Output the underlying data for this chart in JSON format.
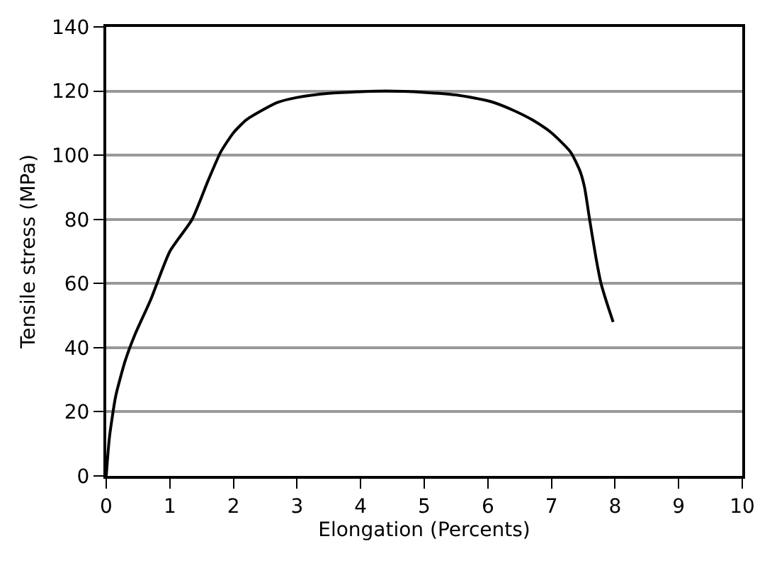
{
  "chart_data": {
    "type": "line",
    "xlabel": "Elongation (Percents)",
    "ylabel": "Tensile stress (MPa)",
    "series": [
      {
        "color": "#000000",
        "x": [
          0,
          0.05,
          0.15,
          0.3,
          0.45,
          0.7,
          1.0,
          1.35,
          1.6,
          1.8,
          2.0,
          2.2,
          2.45,
          2.7,
          3.0,
          3.5,
          4.0,
          4.4,
          5.0,
          5.5,
          6.05,
          6.4,
          6.7,
          7.0,
          7.3,
          7.45,
          7.52,
          7.6,
          7.7,
          7.78,
          7.87,
          7.97
        ],
        "values": [
          0,
          12,
          25,
          36,
          44,
          55,
          70,
          80,
          92,
          101,
          107,
          111,
          114,
          116.5,
          118,
          119.3,
          119.8,
          120,
          119.6,
          118.8,
          116.7,
          114,
          111,
          107,
          101,
          95,
          90,
          80,
          68,
          60,
          54,
          48
        ]
      }
    ],
    "xlim": [
      0,
      10
    ],
    "xticks": [
      0,
      1,
      2,
      3,
      4,
      5,
      6,
      7,
      8,
      9,
      10
    ],
    "ylim": [
      0,
      140
    ],
    "yticks": [
      0,
      20,
      40,
      60,
      80,
      100,
      120,
      140
    ],
    "grid": "y",
    "marker": "none",
    "line_style": "solid"
  }
}
